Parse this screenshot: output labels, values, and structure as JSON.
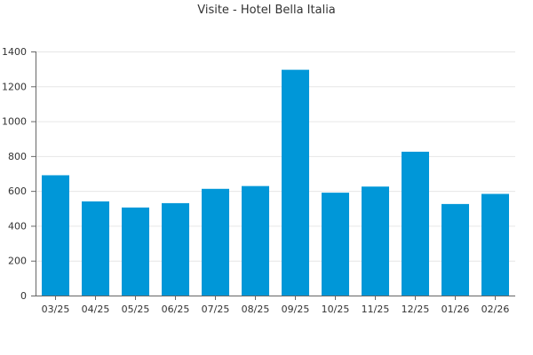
{
  "chart_data": {
    "type": "bar",
    "title": "Visite - Hotel Bella Italia",
    "xlabel": "",
    "ylabel": "",
    "categories": [
      "03/25",
      "04/25",
      "05/25",
      "06/25",
      "07/25",
      "08/25",
      "09/25",
      "10/25",
      "11/25",
      "12/25",
      "01/26",
      "02/26"
    ],
    "values": [
      690,
      540,
      505,
      530,
      612,
      628,
      1295,
      590,
      625,
      825,
      525,
      583
    ],
    "ylim": [
      0,
      1400
    ],
    "yticks": [
      0,
      200,
      400,
      600,
      800,
      1000,
      1200,
      1400
    ],
    "grid": true,
    "legend": "none",
    "bar_color": "#0097d8",
    "axis_color": "#666666",
    "grid_color": "#e6e6e6"
  }
}
